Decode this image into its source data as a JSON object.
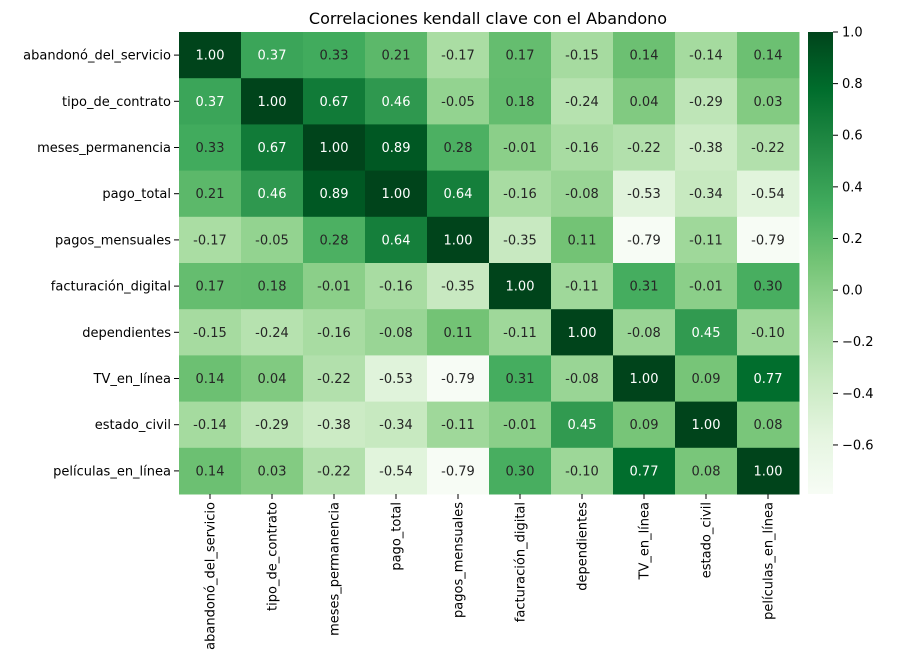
{
  "chart_data": {
    "type": "heatmap",
    "title": "Correlaciones kendall clave con el Abandono",
    "xlabel": "",
    "ylabel": "",
    "variables": [
      "abandonó_del_servicio",
      "tipo_de_contrato",
      "meses_permanencia",
      "pago_total",
      "pagos_mensuales",
      "facturación_digital",
      "dependientes",
      "TV_en_línea",
      "estado_civil",
      "películas_en_línea"
    ],
    "values": [
      [
        1.0,
        0.37,
        0.33,
        0.21,
        -0.17,
        0.17,
        -0.15,
        0.14,
        -0.14,
        0.14
      ],
      [
        0.37,
        1.0,
        0.67,
        0.46,
        -0.05,
        0.18,
        -0.24,
        0.04,
        -0.29,
        0.03
      ],
      [
        0.33,
        0.67,
        1.0,
        0.89,
        0.28,
        -0.01,
        -0.16,
        -0.22,
        -0.38,
        -0.22
      ],
      [
        0.21,
        0.46,
        0.89,
        1.0,
        0.64,
        -0.16,
        -0.08,
        -0.53,
        -0.34,
        -0.54
      ],
      [
        -0.17,
        -0.05,
        0.28,
        0.64,
        1.0,
        -0.35,
        0.11,
        -0.79,
        -0.11,
        -0.79
      ],
      [
        0.17,
        0.18,
        -0.01,
        -0.16,
        -0.35,
        1.0,
        -0.11,
        0.31,
        -0.01,
        0.3
      ],
      [
        -0.15,
        -0.24,
        -0.16,
        -0.08,
        0.11,
        -0.11,
        1.0,
        -0.08,
        0.45,
        -0.1
      ],
      [
        0.14,
        0.04,
        -0.22,
        -0.53,
        -0.79,
        0.31,
        -0.08,
        1.0,
        0.09,
        0.77
      ],
      [
        -0.14,
        -0.29,
        -0.38,
        -0.34,
        -0.11,
        -0.01,
        0.45,
        0.09,
        1.0,
        0.08
      ],
      [
        0.14,
        0.03,
        -0.22,
        -0.54,
        -0.79,
        0.3,
        -0.1,
        0.77,
        0.08,
        1.0
      ]
    ],
    "value_format": "0.00",
    "colormap": "Greens",
    "color_range": [
      -0.79,
      1.0
    ],
    "colorbar": {
      "ticks": [
        1.0,
        0.8,
        0.6,
        0.4,
        0.2,
        0.0,
        -0.2,
        -0.4,
        -0.6
      ],
      "tick_labels": [
        "1.0",
        "0.8",
        "0.6",
        "0.4",
        "0.2",
        "0.0",
        "−0.2",
        "−0.4",
        "−0.6"
      ]
    },
    "grid": false,
    "legend": "colorbar-right"
  }
}
